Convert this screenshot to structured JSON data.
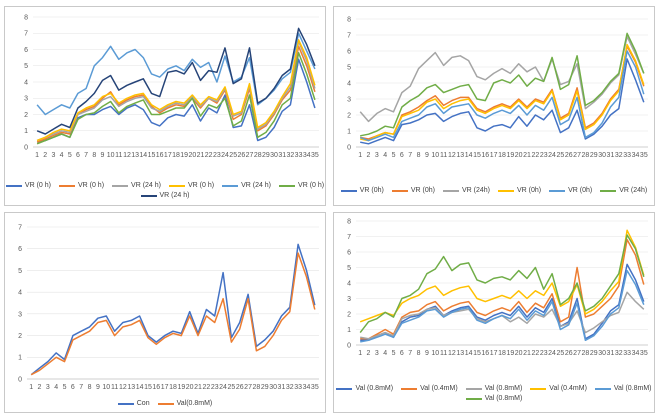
{
  "chart_data": [
    {
      "type": "line",
      "panel": "top-left",
      "title": "",
      "xlabel": "",
      "ylabel": "",
      "x": [
        1,
        2,
        3,
        4,
        5,
        6,
        7,
        8,
        9,
        10,
        11,
        12,
        13,
        14,
        15,
        16,
        17,
        18,
        19,
        20,
        21,
        22,
        23,
        24,
        25,
        26,
        27,
        28,
        29,
        30,
        31,
        32,
        33,
        34,
        35
      ],
      "ylim": [
        0,
        8
      ],
      "yticks": [
        0,
        1,
        2,
        3,
        4,
        5,
        6,
        7,
        8
      ],
      "grid": true,
      "legend_position": "bottom",
      "series": [
        {
          "name": "VR (0 h)",
          "color": "#4472c4",
          "values": [
            0.3,
            0.4,
            0.6,
            0.8,
            0.6,
            1.8,
            2.0,
            2.0,
            2.3,
            2.5,
            2.0,
            2.4,
            2.6,
            2.3,
            1.5,
            1.3,
            1.8,
            2.0,
            1.9,
            2.6,
            1.6,
            2.4,
            2.1,
            3.2,
            1.2,
            1.3,
            2.6,
            0.4,
            0.6,
            1.2,
            2.2,
            2.6,
            5.4,
            4.0,
            2.4
          ]
        },
        {
          "name": "VR (0 h)",
          "color": "#ed7d31",
          "values": [
            0.3,
            0.5,
            0.7,
            0.9,
            0.8,
            2.0,
            2.3,
            2.5,
            3.0,
            3.4,
            2.6,
            2.9,
            3.1,
            3.2,
            2.5,
            2.1,
            2.4,
            2.6,
            2.5,
            3.0,
            2.4,
            3.0,
            2.7,
            3.5,
            1.7,
            2.0,
            3.6,
            1.0,
            1.3,
            2.0,
            2.9,
            3.5,
            6.2,
            5.0,
            3.4
          ]
        },
        {
          "name": "VR (24 h)",
          "color": "#a5a5a5",
          "values": [
            0.4,
            0.6,
            0.8,
            1.0,
            0.9,
            2.0,
            2.2,
            2.4,
            2.9,
            3.1,
            2.5,
            2.8,
            3.0,
            3.1,
            2.4,
            2.2,
            2.5,
            2.7,
            2.6,
            3.1,
            2.5,
            3.0,
            2.8,
            3.6,
            1.9,
            2.1,
            3.8,
            1.1,
            1.4,
            2.1,
            3.0,
            3.7,
            6.5,
            5.3,
            3.6
          ]
        },
        {
          "name": "VR (0 h)",
          "color": "#ffc000",
          "values": [
            0.4,
            0.6,
            0.9,
            1.1,
            1.0,
            2.1,
            2.4,
            2.6,
            3.1,
            3.3,
            2.7,
            3.0,
            3.2,
            3.3,
            2.6,
            2.3,
            2.6,
            2.8,
            2.7,
            3.2,
            2.6,
            3.1,
            2.9,
            3.7,
            2.0,
            2.2,
            3.9,
            1.2,
            1.5,
            2.2,
            3.1,
            3.9,
            6.6,
            5.5,
            3.8
          ]
        },
        {
          "name": "VR (24 h)",
          "color": "#5b9bd5",
          "values": [
            2.6,
            2.0,
            2.3,
            2.6,
            2.4,
            3.3,
            3.6,
            5.0,
            5.5,
            6.2,
            5.4,
            5.8,
            6.0,
            5.5,
            4.5,
            4.3,
            4.8,
            5.0,
            4.7,
            5.4,
            4.9,
            5.2,
            4.0,
            5.6,
            4.0,
            4.3,
            5.5,
            2.6,
            3.0,
            3.5,
            4.2,
            4.6,
            7.0,
            5.9,
            4.8
          ]
        },
        {
          "name": "VR (0 h)",
          "color": "#70ad47",
          "values": [
            0.2,
            0.4,
            0.6,
            0.8,
            0.6,
            1.7,
            2.0,
            2.1,
            2.5,
            2.8,
            2.1,
            2.5,
            2.7,
            2.9,
            2.0,
            2.0,
            2.2,
            2.4,
            2.4,
            3.0,
            1.9,
            2.6,
            2.4,
            3.0,
            1.3,
            1.6,
            3.2,
            0.6,
            0.9,
            1.6,
            2.6,
            3.0,
            5.8,
            4.5,
            2.9
          ]
        },
        {
          "name": "VR (24 h)",
          "color": "#264478",
          "values": [
            1.0,
            0.8,
            1.1,
            1.4,
            1.2,
            2.4,
            2.8,
            3.3,
            4.1,
            4.4,
            3.5,
            3.8,
            4.0,
            4.2,
            3.3,
            3.1,
            4.6,
            4.7,
            4.5,
            5.2,
            4.1,
            4.7,
            4.6,
            6.1,
            3.9,
            4.2,
            6.1,
            2.7,
            3.0,
            3.6,
            4.4,
            4.8,
            7.3,
            6.3,
            5.0
          ]
        }
      ]
    },
    {
      "type": "line",
      "panel": "top-right",
      "title": "",
      "xlabel": "",
      "ylabel": "",
      "x": [
        1,
        2,
        3,
        4,
        5,
        6,
        7,
        8,
        9,
        10,
        11,
        12,
        13,
        14,
        15,
        16,
        17,
        18,
        19,
        20,
        21,
        22,
        23,
        24,
        25,
        26,
        27,
        28,
        29,
        30,
        31,
        32,
        33,
        34,
        35
      ],
      "ylim": [
        0,
        8
      ],
      "yticks": [
        0,
        1,
        2,
        3,
        4,
        5,
        6,
        7,
        8
      ],
      "grid": true,
      "legend_position": "bottom",
      "series": [
        {
          "name": "VR (0h)",
          "color": "#4472c4",
          "values": [
            0.3,
            0.2,
            0.4,
            0.6,
            0.4,
            1.4,
            1.5,
            1.7,
            2.0,
            2.1,
            1.6,
            1.9,
            2.1,
            2.2,
            1.2,
            1.0,
            1.3,
            1.4,
            1.2,
            1.9,
            1.3,
            2.0,
            1.7,
            2.3,
            0.9,
            1.2,
            2.3,
            0.5,
            0.8,
            1.3,
            2.0,
            2.4,
            5.5,
            4.2,
            2.8
          ]
        },
        {
          "name": "VR (0h)",
          "color": "#ed7d31",
          "values": [
            0.6,
            0.5,
            0.7,
            0.9,
            0.8,
            2.0,
            2.2,
            2.5,
            2.9,
            3.2,
            2.6,
            2.9,
            3.1,
            3.1,
            2.4,
            2.2,
            2.5,
            2.7,
            2.5,
            3.0,
            2.5,
            3.0,
            2.8,
            3.6,
            1.8,
            2.1,
            3.7,
            1.2,
            1.5,
            2.1,
            3.0,
            3.6,
            6.3,
            5.3,
            3.8
          ]
        },
        {
          "name": "VR (24h)",
          "color": "#a5a5a5",
          "values": [
            2.2,
            1.6,
            2.1,
            2.4,
            2.2,
            3.4,
            3.8,
            4.9,
            5.4,
            5.9,
            5.1,
            5.6,
            5.7,
            5.4,
            4.4,
            4.2,
            4.6,
            4.9,
            4.6,
            5.2,
            4.7,
            5.0,
            4.1,
            5.5,
            3.9,
            4.1,
            5.2,
            2.4,
            2.8,
            3.3,
            4.0,
            4.5,
            6.9,
            5.8,
            4.6
          ]
        },
        {
          "name": "VR (0h)",
          "color": "#ffc000",
          "values": [
            0.5,
            0.4,
            0.7,
            0.9,
            0.8,
            1.9,
            2.1,
            2.3,
            2.8,
            3.0,
            2.4,
            2.7,
            2.9,
            3.0,
            2.3,
            2.1,
            2.4,
            2.6,
            2.4,
            2.9,
            2.4,
            2.9,
            2.7,
            3.5,
            1.7,
            2.0,
            3.5,
            1.1,
            1.4,
            2.0,
            2.9,
            3.5,
            6.4,
            5.4,
            3.9
          ]
        },
        {
          "name": "VR (0h)",
          "color": "#5b9bd5",
          "values": [
            0.6,
            0.4,
            0.6,
            0.8,
            0.6,
            1.6,
            1.8,
            2.0,
            2.5,
            2.7,
            2.1,
            2.5,
            2.6,
            2.7,
            2.0,
            1.8,
            2.1,
            2.3,
            2.1,
            2.6,
            2.0,
            2.6,
            2.3,
            3.1,
            1.4,
            1.7,
            3.1,
            0.6,
            0.9,
            1.5,
            2.5,
            3.1,
            6.0,
            5.0,
            3.3
          ]
        },
        {
          "name": "VR (24h)",
          "color": "#70ad47",
          "values": [
            0.7,
            0.8,
            1.0,
            1.3,
            1.2,
            2.5,
            2.9,
            3.2,
            3.7,
            3.9,
            3.4,
            3.6,
            3.8,
            3.9,
            3.0,
            2.9,
            4.0,
            4.2,
            4.0,
            4.5,
            3.8,
            4.3,
            4.1,
            5.6,
            3.6,
            3.9,
            5.7,
            2.6,
            2.9,
            3.4,
            4.1,
            4.6,
            7.1,
            6.0,
            4.6
          ]
        }
      ]
    },
    {
      "type": "line",
      "panel": "bottom-left",
      "title": "",
      "xlabel": "",
      "ylabel": "",
      "x": [
        1,
        2,
        3,
        4,
        5,
        6,
        7,
        8,
        9,
        10,
        11,
        12,
        13,
        14,
        15,
        16,
        17,
        18,
        19,
        20,
        21,
        22,
        23,
        24,
        25,
        26,
        27,
        28,
        29,
        30,
        31,
        32,
        33,
        34,
        35
      ],
      "ylim": [
        0,
        7
      ],
      "yticks": [
        0,
        1,
        2,
        3,
        4,
        5,
        6,
        7
      ],
      "grid": true,
      "legend_position": "bottom",
      "series": [
        {
          "name": "Con",
          "color": "#4472c4",
          "values": [
            0.2,
            0.5,
            0.8,
            1.2,
            0.9,
            2.0,
            2.2,
            2.4,
            2.8,
            2.9,
            2.2,
            2.6,
            2.7,
            2.9,
            2.0,
            1.7,
            2.0,
            2.2,
            2.1,
            3.1,
            2.1,
            3.2,
            2.9,
            4.9,
            1.9,
            2.6,
            3.9,
            1.5,
            1.8,
            2.2,
            2.9,
            3.3,
            6.2,
            5.0,
            3.4
          ]
        },
        {
          "name": "Val(0.8mM)",
          "color": "#ed7d31",
          "values": [
            0.2,
            0.4,
            0.7,
            1.0,
            0.8,
            1.8,
            2.0,
            2.2,
            2.6,
            2.7,
            2.0,
            2.4,
            2.5,
            2.7,
            1.9,
            1.6,
            1.9,
            2.1,
            2.0,
            2.9,
            2.0,
            2.9,
            2.6,
            3.7,
            1.7,
            2.3,
            3.7,
            1.3,
            1.5,
            2.0,
            2.7,
            3.1,
            5.8,
            4.7,
            3.2
          ]
        }
      ]
    },
    {
      "type": "line",
      "panel": "bottom-right",
      "title": "",
      "xlabel": "",
      "ylabel": "",
      "x": [
        1,
        2,
        3,
        4,
        5,
        6,
        7,
        8,
        9,
        10,
        11,
        12,
        13,
        14,
        15,
        16,
        17,
        18,
        19,
        20,
        21,
        22,
        23,
        24,
        25,
        26,
        27,
        28,
        29,
        30,
        31,
        32,
        33,
        34,
        35
      ],
      "ylim": [
        0,
        8
      ],
      "yticks": [
        0,
        1,
        2,
        3,
        4,
        5,
        6,
        7,
        8
      ],
      "grid": true,
      "legend_position": "bottom",
      "series": [
        {
          "name": "Val (0.8mM)",
          "color": "#4472c4",
          "values": [
            0.3,
            0.3,
            0.6,
            0.8,
            0.5,
            1.5,
            1.8,
            1.9,
            2.3,
            2.5,
            1.9,
            2.2,
            2.4,
            2.5,
            1.8,
            1.6,
            1.9,
            2.1,
            1.9,
            2.5,
            1.8,
            2.4,
            2.1,
            3.0,
            1.2,
            1.5,
            3.0,
            0.4,
            0.7,
            1.4,
            2.2,
            2.6,
            5.2,
            4.2,
            2.8
          ]
        },
        {
          "name": "Val (0.4mM)",
          "color": "#ed7d31",
          "values": [
            0.4,
            0.4,
            0.7,
            1.0,
            0.7,
            1.8,
            2.1,
            2.2,
            2.6,
            2.8,
            2.2,
            2.5,
            2.7,
            2.8,
            2.1,
            1.9,
            2.2,
            2.4,
            2.2,
            2.8,
            2.1,
            2.7,
            2.4,
            3.3,
            1.5,
            1.8,
            5.0,
            1.8,
            2.0,
            2.5,
            3.0,
            3.8,
            6.8,
            5.8,
            3.9
          ]
        },
        {
          "name": "Val (0.8mM)",
          "color": "#a5a5a5",
          "values": [
            0.5,
            0.4,
            0.6,
            0.8,
            0.6,
            1.7,
            1.9,
            2.0,
            2.3,
            2.4,
            1.9,
            2.1,
            2.2,
            2.3,
            1.7,
            1.5,
            1.7,
            1.9,
            1.5,
            1.8,
            1.4,
            2.0,
            1.8,
            2.3,
            1.2,
            1.4,
            2.2,
            0.8,
            1.1,
            1.5,
            1.9,
            2.1,
            3.4,
            2.8,
            2.3
          ]
        },
        {
          "name": "Val (0.4mM)",
          "color": "#ffc000",
          "values": [
            1.5,
            1.7,
            1.9,
            2.1,
            1.9,
            2.7,
            3.0,
            3.2,
            3.6,
            3.8,
            3.2,
            3.5,
            3.7,
            3.8,
            3.0,
            2.8,
            3.0,
            3.2,
            3.0,
            3.5,
            3.0,
            3.5,
            3.2,
            4.0,
            2.5,
            2.8,
            3.9,
            2.0,
            2.3,
            2.8,
            3.5,
            4.1,
            7.4,
            6.3,
            4.5
          ]
        },
        {
          "name": "Val (0.8mM)",
          "color": "#5b9bd5",
          "values": [
            0.2,
            0.3,
            0.5,
            0.7,
            0.5,
            1.4,
            1.6,
            1.8,
            2.2,
            2.3,
            1.8,
            2.1,
            2.3,
            2.4,
            1.6,
            1.4,
            1.7,
            1.9,
            1.7,
            2.3,
            1.6,
            2.2,
            1.9,
            2.8,
            1.0,
            1.3,
            2.7,
            0.3,
            0.6,
            1.2,
            2.0,
            2.4,
            4.8,
            3.9,
            2.6
          ]
        },
        {
          "name": "Val (0.8mM)",
          "color": "#70ad47",
          "values": [
            0.8,
            1.5,
            1.7,
            2.1,
            1.8,
            3.0,
            3.2,
            3.6,
            4.6,
            4.9,
            5.7,
            4.8,
            5.2,
            5.3,
            4.2,
            4.0,
            4.3,
            4.4,
            4.2,
            4.8,
            4.3,
            5.0,
            3.6,
            4.6,
            2.6,
            3.0,
            4.0,
            2.2,
            2.5,
            3.0,
            3.8,
            4.6,
            7.1,
            6.2,
            4.4
          ]
        }
      ]
    }
  ]
}
